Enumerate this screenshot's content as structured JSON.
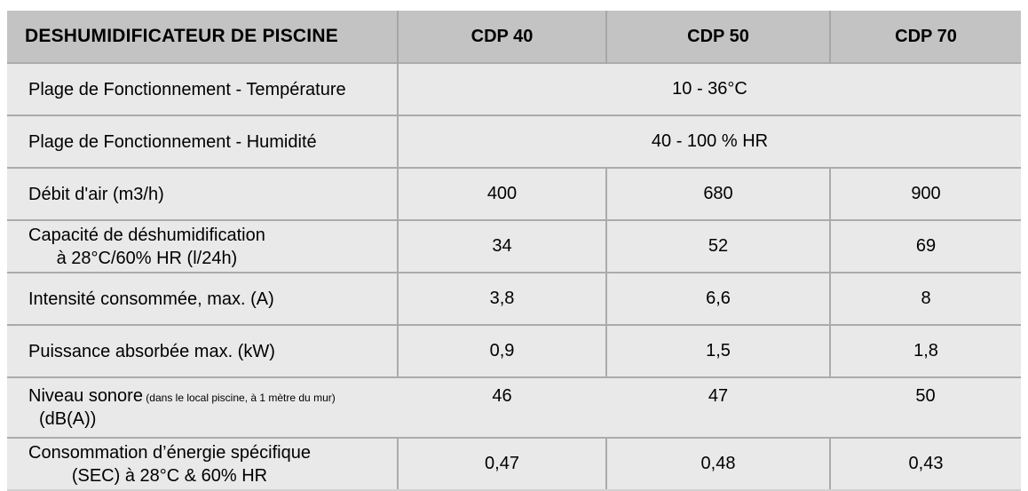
{
  "colors": {
    "page_background": "#ffffff",
    "header_background": "#c3c3c3",
    "row_background": "#e9e9e9",
    "grid_line": "#ababab",
    "text": "#000000"
  },
  "table": {
    "title": "DESHUMIDIFICATEUR DE PISCINE",
    "model_columns": [
      "CDP 40",
      "CDP 50",
      "CDP 70"
    ],
    "rows": [
      {
        "label": "Plage de Fonctionnement - Température",
        "merged_value": "10 - 36°C"
      },
      {
        "label": "Plage de Fonctionnement - Humidité",
        "merged_value": "40 - 100 % HR"
      },
      {
        "label": "Débit d'air (m3/h)",
        "values": [
          "400",
          "680",
          "900"
        ]
      },
      {
        "label": "Capacité de déshumidification",
        "label_line2": "à 28°C/60% HR (l/24h)",
        "values": [
          "34",
          "52",
          "69"
        ]
      },
      {
        "label": "Intensité consommée, max. (A)",
        "values": [
          "3,8",
          "6,6",
          "8"
        ]
      },
      {
        "label": "Puissance absorbée max. (kW)",
        "values": [
          "0,9",
          "1,5",
          "1,8"
        ]
      },
      {
        "label": "Niveau sonore",
        "label_small": "(dans le local piscine, à 1 mètre du mur)",
        "label_line2": "(dB(A))",
        "label_align": "left",
        "values": [
          "46",
          "47",
          "50"
        ],
        "dividers": false,
        "values_valign": "top"
      },
      {
        "label": "Consommation d’énergie spécifique",
        "label_line2": "(SEC) à 28°C & 60% HR",
        "values": [
          "0,47",
          "0,48",
          "0,43"
        ]
      }
    ]
  }
}
